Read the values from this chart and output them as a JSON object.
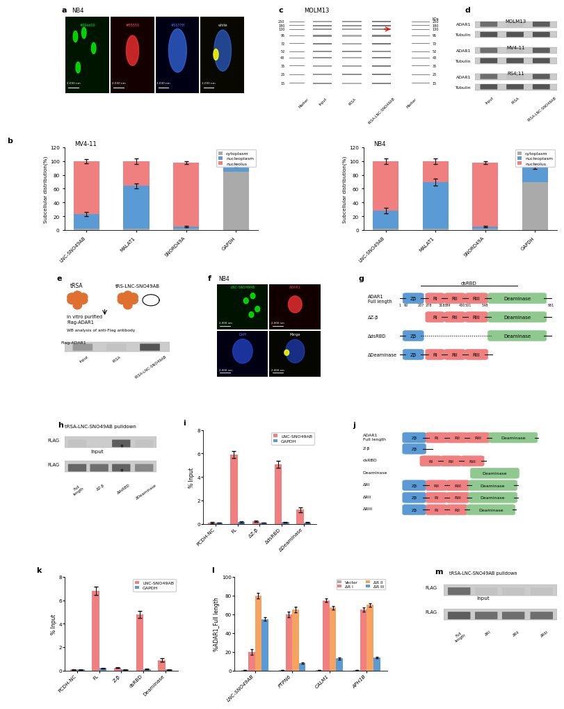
{
  "panel_b_mv411": {
    "categories": [
      "LNC-SNO49AB",
      "MALAT1",
      "SNORD49A",
      "GAPDH"
    ],
    "cytoplasm": [
      2,
      2,
      2,
      85
    ],
    "nucleoplasm": [
      21,
      62,
      3,
      9
    ],
    "nucleolus": [
      77,
      36,
      93,
      1
    ],
    "cytoplasm_err": [
      1,
      1,
      1,
      3
    ],
    "nucleoplasm_err": [
      3,
      4,
      1,
      2
    ],
    "nucleolus_err": [
      3,
      4,
      2,
      2
    ],
    "title": "MV4-11"
  },
  "panel_b_nb4": {
    "categories": [
      "LNC-SNO49AB",
      "MALAT1",
      "SNORD49A",
      "GAPDH"
    ],
    "cytoplasm": [
      2,
      2,
      2,
      70
    ],
    "nucleoplasm": [
      26,
      68,
      3,
      23
    ],
    "nucleolus": [
      72,
      30,
      93,
      2
    ],
    "cytoplasm_err": [
      1,
      1,
      1,
      3
    ],
    "nucleoplasm_err": [
      4,
      5,
      1,
      4
    ],
    "nucleolus_err": [
      4,
      4,
      2,
      2
    ],
    "title": "NB4"
  },
  "panel_i": {
    "categories": [
      "PCDH-NC",
      "FL",
      "ΔZ-β",
      "ΔdsRBD",
      "ΔDeaminase"
    ],
    "lnc_values": [
      0.08,
      5.9,
      0.2,
      5.1,
      1.2
    ],
    "gapdh_values": [
      0.08,
      0.15,
      0.08,
      0.12,
      0.1
    ],
    "lnc_err": [
      0.04,
      0.3,
      0.05,
      0.3,
      0.2
    ],
    "gapdh_err": [
      0.02,
      0.04,
      0.02,
      0.03,
      0.03
    ],
    "ylabel": "% Input",
    "ylim": [
      0,
      8
    ]
  },
  "panel_k": {
    "categories": [
      "PCDH-NC",
      "FL",
      "Z-β",
      "dsRBD",
      "Deaminase"
    ],
    "lnc_values": [
      0.08,
      6.8,
      0.25,
      4.8,
      0.9
    ],
    "gapdh_values": [
      0.08,
      0.2,
      0.08,
      0.12,
      0.08
    ],
    "lnc_err": [
      0.04,
      0.35,
      0.05,
      0.3,
      0.15
    ],
    "gapdh_err": [
      0.02,
      0.04,
      0.02,
      0.03,
      0.02
    ],
    "ylabel": "% Input",
    "ylim": [
      0,
      8
    ]
  },
  "panel_l": {
    "categories": [
      "LNC-SNO49AB",
      "PTPN6",
      "CALM1",
      "APH1B"
    ],
    "vector": [
      0.5,
      0.5,
      0.5,
      0.5
    ],
    "delta_ri": [
      20,
      60,
      75,
      65
    ],
    "delta_rii": [
      80,
      65,
      67,
      70
    ],
    "delta_riii": [
      55,
      8,
      13,
      14
    ],
    "vector_err": [
      0.2,
      0.2,
      0.2,
      0.2
    ],
    "ri_err": [
      3,
      3,
      2,
      2
    ],
    "rii_err": [
      3,
      3,
      2,
      2
    ],
    "riii_err": [
      2,
      1,
      1,
      1
    ],
    "ylabel": "%ADAR1_Full length",
    "ylim": [
      0,
      100
    ]
  },
  "colors": {
    "cytoplasm": "#aaaaaa",
    "nucleoplasm": "#5b9bd5",
    "nucleolus": "#f08080",
    "lnc_bar": "#f08080",
    "gapdh_bar": "#5b9bd5",
    "vector_bar": "#aaaaaa",
    "ri_bar": "#f08080",
    "rii_bar": "#f4a460",
    "riii_bar": "#5b9bd5",
    "zb_box": "#5b9bd5",
    "ri_box": "#f08080",
    "deaminase_box": "#90c990"
  }
}
